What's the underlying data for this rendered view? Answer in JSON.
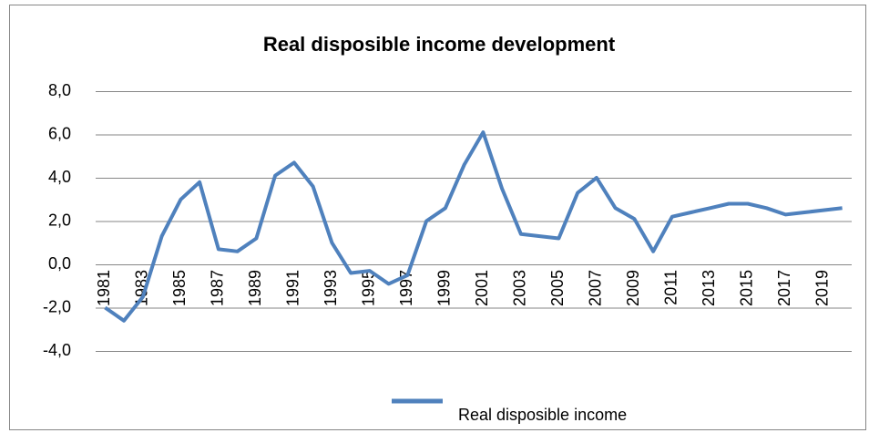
{
  "chart_data": {
    "type": "line",
    "title": "Real disposible income development",
    "categories": [
      "1981",
      null,
      "1983",
      null,
      "1985",
      null,
      "1987",
      null,
      "1989",
      null,
      "1991",
      null,
      "1993",
      null,
      "1995",
      null,
      "1997",
      null,
      "1999",
      null,
      "2001",
      null,
      "2003",
      null,
      "2005",
      null,
      "2007",
      null,
      "2009",
      null,
      "2011",
      null,
      "2013",
      null,
      "2015",
      null,
      "2017",
      null,
      "2019",
      null
    ],
    "series": [
      {
        "name": "Real disposible income",
        "color": "#4f81bd",
        "values": [
          -2.0,
          -2.6,
          -1.5,
          1.3,
          3.0,
          3.8,
          0.7,
          0.6,
          1.2,
          4.1,
          4.7,
          3.6,
          1.0,
          -0.4,
          -0.3,
          -0.9,
          -0.5,
          2.0,
          2.6,
          4.6,
          6.1,
          3.5,
          1.4,
          1.3,
          1.2,
          3.3,
          4.0,
          2.6,
          2.1,
          0.6,
          2.2,
          2.4,
          2.6,
          2.8,
          2.8,
          2.6,
          2.3,
          2.4,
          2.5,
          2.6
        ]
      }
    ],
    "ylim": [
      -4,
      8
    ],
    "yticks": [
      {
        "value": -4,
        "label": "-4,0"
      },
      {
        "value": -2,
        "label": "-2,0"
      },
      {
        "value": 0,
        "label": "0,0"
      },
      {
        "value": 2,
        "label": "2,0"
      },
      {
        "value": 4,
        "label": "4,0"
      },
      {
        "value": 6,
        "label": "6,0"
      },
      {
        "value": 8,
        "label": "8,0"
      }
    ],
    "grid": true,
    "legend": "bottom"
  }
}
